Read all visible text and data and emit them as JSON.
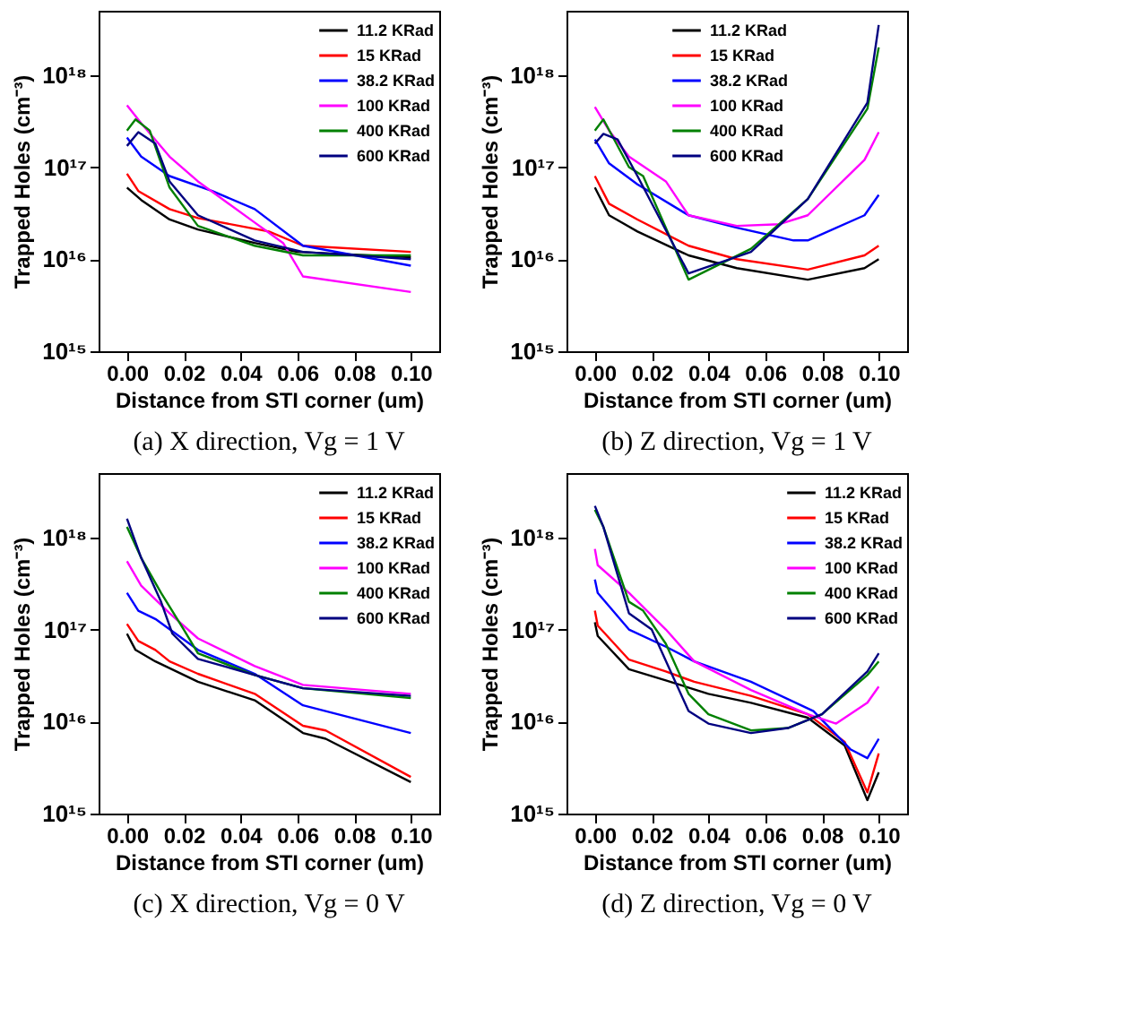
{
  "chart_data": [
    {
      "type": "line",
      "title": "(a) X direction, Vg = 1 V",
      "xlabel": "Distance from STI corner (um)",
      "ylabel": "Trapped Holes (cm⁻³)",
      "log": "y",
      "grid": false,
      "legend": "top right",
      "xlim": [
        -0.01,
        0.11
      ],
      "xticks": [
        {
          "value": 0,
          "label": "0.00"
        },
        {
          "value": 0.02,
          "label": "0.02"
        },
        {
          "value": 0.04,
          "label": "0.04"
        },
        {
          "value": 0.06,
          "label": "0.06"
        },
        {
          "value": 0.08,
          "label": "0.08"
        },
        {
          "value": 0.1,
          "label": "0.10"
        }
      ],
      "ylim": [
        1000000000000000.0,
        5e+18
      ],
      "yticks": [
        {
          "value": 1000000000000000.0,
          "label": "10¹⁵"
        },
        {
          "value": 1e+16,
          "label": "10¹⁶"
        },
        {
          "value": 1e+17,
          "label": "10¹⁷"
        },
        {
          "value": 1e+18,
          "label": "10¹⁸"
        }
      ],
      "series": [
        {
          "name": "11.2 KRad",
          "color": "#000000",
          "x": [
            0,
            0.005,
            0.015,
            0.025,
            0.045,
            0.06,
            0.1
          ],
          "values": [
            6e+16,
            4.4e+16,
            2.7e+16,
            2.1e+16,
            1.5e+16,
            1.2e+16,
            1.05e+16
          ]
        },
        {
          "name": "15 KRad",
          "color": "#ff0000",
          "x": [
            0,
            0.004,
            0.015,
            0.025,
            0.05,
            0.062,
            0.1
          ],
          "values": [
            8.5e+16,
            5.5e+16,
            3.5e+16,
            2.8e+16,
            2e+16,
            1.4e+16,
            1.2e+16
          ]
        },
        {
          "name": "38.2 KRad",
          "color": "#0000ff",
          "x": [
            0,
            0.005,
            0.015,
            0.03,
            0.045,
            0.062,
            0.1
          ],
          "values": [
            2.1e+17,
            1.3e+17,
            8e+16,
            5.5e+16,
            3.5e+16,
            1.4e+16,
            8500000000000000.0
          ]
        },
        {
          "name": "100 KRad",
          "color": "#ff00ff",
          "x": [
            0,
            0.005,
            0.015,
            0.025,
            0.045,
            0.055,
            0.062,
            0.1
          ],
          "values": [
            4.7e+17,
            3e+17,
            1.3e+17,
            7e+16,
            2.5e+16,
            1.5e+16,
            6500000000000000.0,
            4400000000000000.0
          ]
        },
        {
          "name": "400 KRad",
          "color": "#008000",
          "x": [
            0,
            0.003,
            0.008,
            0.015,
            0.025,
            0.045,
            0.062,
            0.1
          ],
          "values": [
            2.5e+17,
            3.3e+17,
            2.5e+17,
            6e+16,
            2.3e+16,
            1.4e+16,
            1.1e+16,
            1.1e+16
          ]
        },
        {
          "name": "600 KRad",
          "color": "#000080",
          "x": [
            0,
            0.004,
            0.01,
            0.015,
            0.025,
            0.045,
            0.062,
            0.1
          ],
          "values": [
            1.7e+17,
            2.4e+17,
            1.8e+17,
            7e+16,
            3e+16,
            1.6e+16,
            1.2e+16,
            1e+16
          ]
        }
      ]
    },
    {
      "type": "line",
      "title": "(b) Z direction, Vg = 1 V",
      "xlabel": "Distance from STI corner (um)",
      "ylabel": "Trapped Holes (cm⁻³)",
      "log": "y",
      "grid": false,
      "legend": "top",
      "xlim": [
        -0.01,
        0.11
      ],
      "xticks": [
        {
          "value": 0,
          "label": "0.00"
        },
        {
          "value": 0.02,
          "label": "0.02"
        },
        {
          "value": 0.04,
          "label": "0.04"
        },
        {
          "value": 0.06,
          "label": "0.06"
        },
        {
          "value": 0.08,
          "label": "0.08"
        },
        {
          "value": 0.1,
          "label": "0.10"
        }
      ],
      "ylim": [
        1000000000000000.0,
        5e+18
      ],
      "yticks": [
        {
          "value": 1000000000000000.0,
          "label": "10¹⁵"
        },
        {
          "value": 1e+16,
          "label": "10¹⁶"
        },
        {
          "value": 1e+17,
          "label": "10¹⁷"
        },
        {
          "value": 1e+18,
          "label": "10¹⁸"
        }
      ],
      "series": [
        {
          "name": "11.2 KRad",
          "color": "#000000",
          "x": [
            0,
            0.005,
            0.015,
            0.033,
            0.05,
            0.075,
            0.095,
            0.1
          ],
          "values": [
            6e+16,
            3e+16,
            2e+16,
            1.1e+16,
            8000000000000000.0,
            6000000000000000.0,
            8000000000000000.0,
            1e+16
          ]
        },
        {
          "name": "15 KRad",
          "color": "#ff0000",
          "x": [
            0,
            0.005,
            0.015,
            0.033,
            0.05,
            0.075,
            0.095,
            0.1
          ],
          "values": [
            8e+16,
            4e+16,
            2.7e+16,
            1.4e+16,
            1e+16,
            7700000000000000.0,
            1.1e+16,
            1.4e+16
          ]
        },
        {
          "name": "38.2 KRad",
          "color": "#0000ff",
          "x": [
            0,
            0.005,
            0.015,
            0.033,
            0.05,
            0.07,
            0.075,
            0.095,
            0.1
          ],
          "values": [
            2e+17,
            1.1e+17,
            6.5e+16,
            3e+16,
            2.2e+16,
            1.6e+16,
            1.6e+16,
            3e+16,
            5e+16
          ]
        },
        {
          "name": "100 KRad",
          "color": "#ff00ff",
          "x": [
            0,
            0.005,
            0.012,
            0.025,
            0.033,
            0.05,
            0.065,
            0.075,
            0.095,
            0.1
          ],
          "values": [
            4.5e+17,
            2.5e+17,
            1.3e+17,
            7e+16,
            3e+16,
            2.3e+16,
            2.4e+16,
            3e+16,
            1.2e+17,
            2.4e+17
          ]
        },
        {
          "name": "400 KRad",
          "color": "#008000",
          "x": [
            0,
            0.003,
            0.012,
            0.017,
            0.033,
            0.055,
            0.075,
            0.096,
            0.1
          ],
          "values": [
            2.5e+17,
            3.3e+17,
            1e+17,
            8e+16,
            6000000000000000.0,
            1.3e+16,
            4.5e+16,
            4.3e+17,
            2e+18
          ]
        },
        {
          "name": "600 KRad",
          "color": "#000080",
          "x": [
            0,
            0.003,
            0.008,
            0.015,
            0.033,
            0.055,
            0.075,
            0.096,
            0.1
          ],
          "values": [
            1.8e+17,
            2.3e+17,
            2e+17,
            8e+16,
            7000000000000000.0,
            1.2e+16,
            4.5e+16,
            5e+17,
            3.5e+18
          ]
        }
      ]
    },
    {
      "type": "line",
      "title": "(c) X direction, Vg = 0 V",
      "xlabel": "Distance from STI corner (um)",
      "ylabel": "Trapped Holes (cm⁻³)",
      "log": "y",
      "grid": false,
      "legend": "top right",
      "xlim": [
        -0.01,
        0.11
      ],
      "xticks": [
        {
          "value": 0,
          "label": "0.00"
        },
        {
          "value": 0.02,
          "label": "0.02"
        },
        {
          "value": 0.04,
          "label": "0.04"
        },
        {
          "value": 0.06,
          "label": "0.06"
        },
        {
          "value": 0.08,
          "label": "0.08"
        },
        {
          "value": 0.1,
          "label": "0.10"
        }
      ],
      "ylim": [
        1000000000000000.0,
        5e+18
      ],
      "yticks": [
        {
          "value": 1000000000000000.0,
          "label": "10¹⁵"
        },
        {
          "value": 1e+16,
          "label": "10¹⁶"
        },
        {
          "value": 1e+17,
          "label": "10¹⁷"
        },
        {
          "value": 1e+18,
          "label": "10¹⁸"
        }
      ],
      "series": [
        {
          "name": "11.2 KRad",
          "color": "#000000",
          "x": [
            0,
            0.003,
            0.01,
            0.025,
            0.045,
            0.062,
            0.07,
            0.1
          ],
          "values": [
            9e+16,
            6e+16,
            4.5e+16,
            2.7e+16,
            1.7e+16,
            7500000000000000.0,
            6500000000000000.0,
            2200000000000000.0
          ]
        },
        {
          "name": "15 KRad",
          "color": "#ff0000",
          "x": [
            0,
            0.004,
            0.01,
            0.015,
            0.025,
            0.045,
            0.062,
            0.07,
            0.1
          ],
          "values": [
            1.15e+17,
            7.5e+16,
            6e+16,
            4.5e+16,
            3.3e+16,
            2e+16,
            9000000000000000.0,
            8000000000000000.0,
            2500000000000000.0
          ]
        },
        {
          "name": "38.2 KRad",
          "color": "#0000ff",
          "x": [
            0,
            0.004,
            0.01,
            0.025,
            0.045,
            0.062,
            0.1
          ],
          "values": [
            2.5e+17,
            1.6e+17,
            1.3e+17,
            6e+16,
            3.3e+16,
            1.5e+16,
            7500000000000000.0
          ]
        },
        {
          "name": "100 KRad",
          "color": "#ff00ff",
          "x": [
            0,
            0.005,
            0.015,
            0.025,
            0.045,
            0.062,
            0.1
          ],
          "values": [
            5.5e+17,
            3e+17,
            1.5e+17,
            8e+16,
            4e+16,
            2.5e+16,
            2e+16
          ]
        },
        {
          "name": "400 KRad",
          "color": "#008000",
          "x": [
            0,
            0.005,
            0.012,
            0.02,
            0.025,
            0.045,
            0.062,
            0.1
          ],
          "values": [
            1.3e+18,
            6e+17,
            2.5e+17,
            1e+17,
            5.5e+16,
            3.2e+16,
            2.3e+16,
            1.8e+16
          ]
        },
        {
          "name": "600 KRad",
          "color": "#000080",
          "x": [
            0,
            0.005,
            0.012,
            0.016,
            0.025,
            0.045,
            0.062,
            0.1
          ],
          "values": [
            1.6e+18,
            6e+17,
            2e+17,
            9e+16,
            4.8e+16,
            3.2e+16,
            2.3e+16,
            1.9e+16
          ]
        }
      ]
    },
    {
      "type": "line",
      "title": "(d) Z direction, Vg = 0 V",
      "xlabel": "Distance from STI corner (um)",
      "ylabel": "Trapped Holes (cm⁻³)",
      "log": "y",
      "grid": false,
      "legend": "top right",
      "xlim": [
        -0.01,
        0.11
      ],
      "xticks": [
        {
          "value": 0,
          "label": "0.00"
        },
        {
          "value": 0.02,
          "label": "0.02"
        },
        {
          "value": 0.04,
          "label": "0.04"
        },
        {
          "value": 0.06,
          "label": "0.06"
        },
        {
          "value": 0.08,
          "label": "0.08"
        },
        {
          "value": 0.1,
          "label": "0.10"
        }
      ],
      "ylim": [
        1000000000000000.0,
        5e+18
      ],
      "yticks": [
        {
          "value": 1000000000000000.0,
          "label": "10¹⁵"
        },
        {
          "value": 1e+16,
          "label": "10¹⁶"
        },
        {
          "value": 1e+17,
          "label": "10¹⁷"
        },
        {
          "value": 1e+18,
          "label": "10¹⁸"
        }
      ],
      "series": [
        {
          "name": "11.2 KRad",
          "color": "#000000",
          "x": [
            0,
            0.001,
            0.012,
            0.025,
            0.04,
            0.055,
            0.075,
            0.088,
            0.096,
            0.1
          ],
          "values": [
            1.2e+17,
            8.5e+16,
            3.7e+16,
            2.8e+16,
            2e+16,
            1.6e+16,
            1.1e+16,
            5500000000000000.0,
            1400000000000000.0,
            2800000000000000.0
          ]
        },
        {
          "name": "15 KRad",
          "color": "#ff0000",
          "x": [
            0,
            0.001,
            0.012,
            0.025,
            0.035,
            0.055,
            0.075,
            0.088,
            0.096,
            0.1
          ],
          "values": [
            1.6e+17,
            1.1e+17,
            4.7e+16,
            3.5e+16,
            2.7e+16,
            1.9e+16,
            1.2e+16,
            6000000000000000.0,
            1700000000000000.0,
            4500000000000000.0
          ]
        },
        {
          "name": "38.2 KRad",
          "color": "#0000ff",
          "x": [
            0,
            0.001,
            0.012,
            0.025,
            0.035,
            0.055,
            0.077,
            0.09,
            0.096,
            0.1
          ],
          "values": [
            3.5e+17,
            2.5e+17,
            1e+17,
            6.5e+16,
            4.5e+16,
            2.7e+16,
            1.3e+16,
            5000000000000000.0,
            4000000000000000.0,
            6500000000000000.0
          ]
        },
        {
          "name": "100 KRad",
          "color": "#ff00ff",
          "x": [
            0,
            0.001,
            0.012,
            0.025,
            0.035,
            0.055,
            0.075,
            0.085,
            0.096,
            0.1
          ],
          "values": [
            7.5e+17,
            5e+17,
            2.5e+17,
            1e+17,
            4.5e+16,
            2.2e+16,
            1.2e+16,
            9500000000000000.0,
            1.6e+16,
            2.4e+16
          ]
        },
        {
          "name": "400 KRad",
          "color": "#008000",
          "x": [
            0,
            0.003,
            0.012,
            0.017,
            0.025,
            0.033,
            0.04,
            0.055,
            0.068,
            0.08,
            0.096,
            0.1
          ],
          "values": [
            2e+18,
            1.3e+18,
            2e+17,
            1.6e+17,
            7e+16,
            2e+16,
            1.2e+16,
            8000000000000000.0,
            8500000000000000.0,
            1.2e+16,
            3.2e+16,
            4.5e+16
          ]
        },
        {
          "name": "600 KRad",
          "color": "#000080",
          "x": [
            0,
            0.003,
            0.012,
            0.02,
            0.033,
            0.04,
            0.055,
            0.068,
            0.08,
            0.096,
            0.1
          ],
          "values": [
            2.2e+18,
            1.3e+18,
            1.5e+17,
            1e+17,
            1.3e+16,
            9500000000000000.0,
            7500000000000000.0,
            8500000000000000.0,
            1.2e+16,
            3.5e+16,
            5.5e+16
          ]
        }
      ]
    }
  ]
}
